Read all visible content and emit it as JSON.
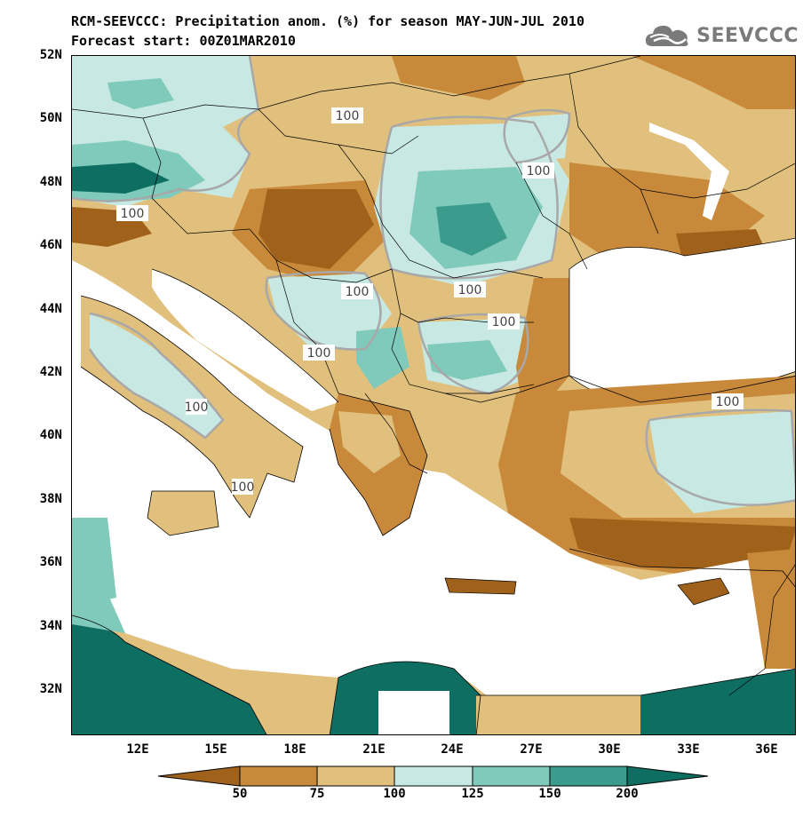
{
  "header": {
    "title_line1": "RCM-SEEVCCC: Precipitation anom. (%) for season MAY-JUN-JUL 2010",
    "title_line2": "Forecast start: 00Z01MAR2010",
    "logo_text": "SEEVCCC"
  },
  "axes": {
    "lat_labels": [
      "52N",
      "50N",
      "48N",
      "46N",
      "44N",
      "42N",
      "40N",
      "38N",
      "36N",
      "34N",
      "32N"
    ],
    "lon_labels": [
      "12E",
      "15E",
      "18E",
      "21E",
      "24E",
      "27E",
      "30E",
      "33E",
      "36E"
    ]
  },
  "contour_labels": [
    "100",
    "100",
    "100",
    "100",
    "100",
    "100",
    "100",
    "100",
    "100",
    "100"
  ],
  "legend": {
    "ticks": [
      "50",
      "75",
      "100",
      "125",
      "150",
      "200"
    ],
    "colors": [
      "#a0621a",
      "#c8893a",
      "#e0c07c",
      "#c8e9e3",
      "#7fcabb",
      "#3b9c8e",
      "#0e6e62"
    ]
  },
  "colors": {
    "dry_strong": "#a0621a",
    "dry": "#c8893a",
    "dry_light": "#e0c07c",
    "wet_light": "#c8e9e3",
    "wet": "#7fcabb",
    "wet_strong": "#3b9c8e",
    "wet_extreme": "#0e6e62",
    "contour": "#a8a8a8"
  }
}
